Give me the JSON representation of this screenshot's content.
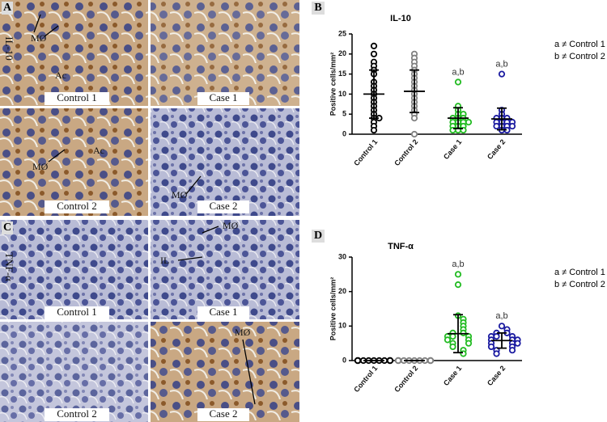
{
  "images": [
    {
      "letter": "A",
      "stain": "IL-10",
      "tiles": [
        "Control 1",
        "Case 1",
        "Control 2",
        "Case 2"
      ],
      "annotations": [
        "MØ",
        "Ac",
        "Ac",
        "MØ",
        "MØ"
      ]
    },
    {
      "letter": "C",
      "stain": "TNF-α",
      "tiles": [
        "Control 1",
        "Case 1",
        "Control 2",
        "Case 2"
      ],
      "annotations": [
        "MØ",
        "IL",
        "MØ"
      ]
    }
  ],
  "chart_data": [
    {
      "type": "dotplot",
      "panel": "B",
      "title": "IL-10",
      "ylabel": "Positive cells/mm²",
      "categories": [
        "Control 1",
        "Control 2",
        "Case 1",
        "Case 2"
      ],
      "groups": [
        {
          "color": "#000000",
          "values": [
            22,
            20,
            18,
            17,
            16,
            15,
            13,
            12,
            11,
            10,
            9,
            8,
            7,
            6,
            5,
            4,
            4,
            3,
            2,
            1
          ],
          "mean": 10,
          "sd": 6
        },
        {
          "color": "#808080",
          "values": [
            20,
            19,
            18,
            17,
            16,
            15,
            14,
            13,
            12,
            11,
            10,
            9,
            8,
            7,
            6,
            5,
            4,
            0
          ],
          "mean": 10.7,
          "sd": 5.3
        },
        {
          "color": "#22bb22",
          "values": [
            13,
            7,
            6,
            5,
            5,
            4,
            4,
            4,
            3,
            3,
            3,
            3,
            2,
            2,
            2,
            1,
            1,
            1
          ],
          "mean": 4,
          "sd": 2.6
        },
        {
          "color": "#1a1aa0",
          "values": [
            15,
            6,
            5,
            4,
            4,
            4,
            3,
            3,
            3,
            3,
            2,
            2,
            2,
            2,
            1,
            1
          ],
          "mean": 3.8,
          "sd": 2.7
        }
      ],
      "group_labels": [
        null,
        null,
        "a,b",
        "a,b"
      ],
      "notes": [
        "a ≠ Control 1",
        "b ≠ Control 2"
      ],
      "ylim": [
        0,
        25
      ],
      "yticks": [
        0,
        5,
        10,
        15,
        20,
        25
      ]
    },
    {
      "type": "dotplot",
      "panel": "D",
      "title": "TNF-α",
      "ylabel": "Positive cells/mm²",
      "categories": [
        "Control 1",
        "Control 2",
        "Case 1",
        "Case 2"
      ],
      "groups": [
        {
          "color": "#000000",
          "values": [
            0,
            0,
            0,
            0,
            0,
            0,
            0,
            0,
            0,
            0,
            0,
            0,
            0,
            0,
            0,
            0,
            0,
            0
          ],
          "mean": 0,
          "sd": 0
        },
        {
          "color": "#808080",
          "values": [
            0,
            0,
            0,
            0,
            0,
            0,
            0,
            0,
            0,
            0,
            0,
            0,
            0,
            0,
            0,
            0,
            0,
            0
          ],
          "mean": 0,
          "sd": 0
        },
        {
          "color": "#22bb22",
          "values": [
            25,
            22,
            13,
            12,
            11,
            10,
            9,
            8,
            8,
            7,
            7,
            7,
            6,
            6,
            5,
            5,
            4,
            3,
            2
          ],
          "mean": 7.8,
          "sd": 5.5
        },
        {
          "color": "#1a1aa0",
          "values": [
            10,
            9,
            8,
            8,
            7,
            7,
            7,
            6,
            6,
            6,
            5,
            5,
            5,
            4,
            4,
            3,
            3,
            2
          ],
          "mean": 5.8,
          "sd": 2.2
        }
      ],
      "group_labels": [
        null,
        null,
        "a,b",
        "a,b"
      ],
      "notes": [
        "a ≠ Control 1",
        "b ≠ Control 2"
      ],
      "ylim": [
        0,
        30
      ],
      "yticks": [
        0,
        10,
        20,
        30
      ]
    }
  ]
}
